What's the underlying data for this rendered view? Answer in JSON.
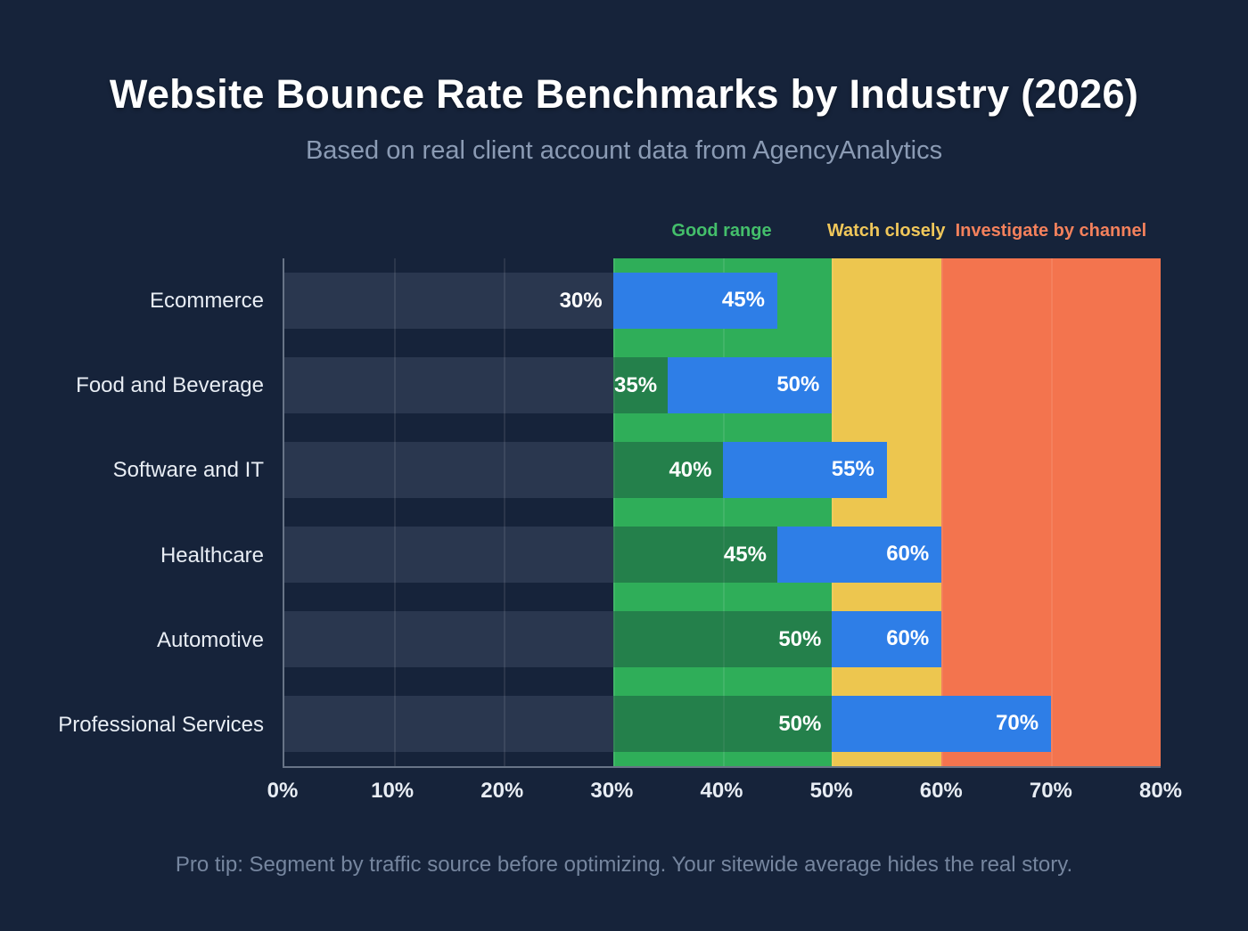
{
  "page": {
    "title": "Website Bounce Rate Benchmarks by Industry (2026)",
    "subtitle": "Based on real client account data from AgencyAnalytics",
    "footnote": "Pro tip: Segment by traffic source before optimizing. Your sitewide average hides the real story."
  },
  "chart_data": {
    "type": "bar",
    "variant": "horizontal-range-bars",
    "title": "Website Bounce Rate Benchmarks by Industry (2026)",
    "categories": [
      "Ecommerce",
      "Food and Beverage",
      "Software and IT",
      "Healthcare",
      "Automotive",
      "Professional Services"
    ],
    "series": [
      {
        "industry": "Ecommerce",
        "min": 30,
        "max": 45
      },
      {
        "industry": "Food and Beverage",
        "min": 35,
        "max": 50
      },
      {
        "industry": "Software and IT",
        "min": 40,
        "max": 55
      },
      {
        "industry": "Healthcare",
        "min": 45,
        "max": 60
      },
      {
        "industry": "Automotive",
        "min": 50,
        "max": 60
      },
      {
        "industry": "Professional Services",
        "min": 50,
        "max": 70
      }
    ],
    "zones": [
      {
        "label": "Good range",
        "from": 30,
        "to": 50,
        "fill": "#2fae59",
        "label_color": "#44bf6b"
      },
      {
        "label": "Watch closely",
        "from": 50,
        "to": 60,
        "fill": "#edc64f",
        "label_color": "#f0c75a"
      },
      {
        "label": "Investigate by channel",
        "from": 60,
        "to": 80,
        "fill": "#f3744e",
        "label_color": "#f4815c"
      }
    ],
    "xlim": [
      0,
      80
    ],
    "x_ticks": [
      "0%",
      "10%",
      "20%",
      "30%",
      "40%",
      "50%",
      "60%",
      "70%",
      "80%"
    ],
    "value_suffix": "%",
    "bar_color": "#2e7ee7",
    "grid": true,
    "legend_position": "top"
  }
}
